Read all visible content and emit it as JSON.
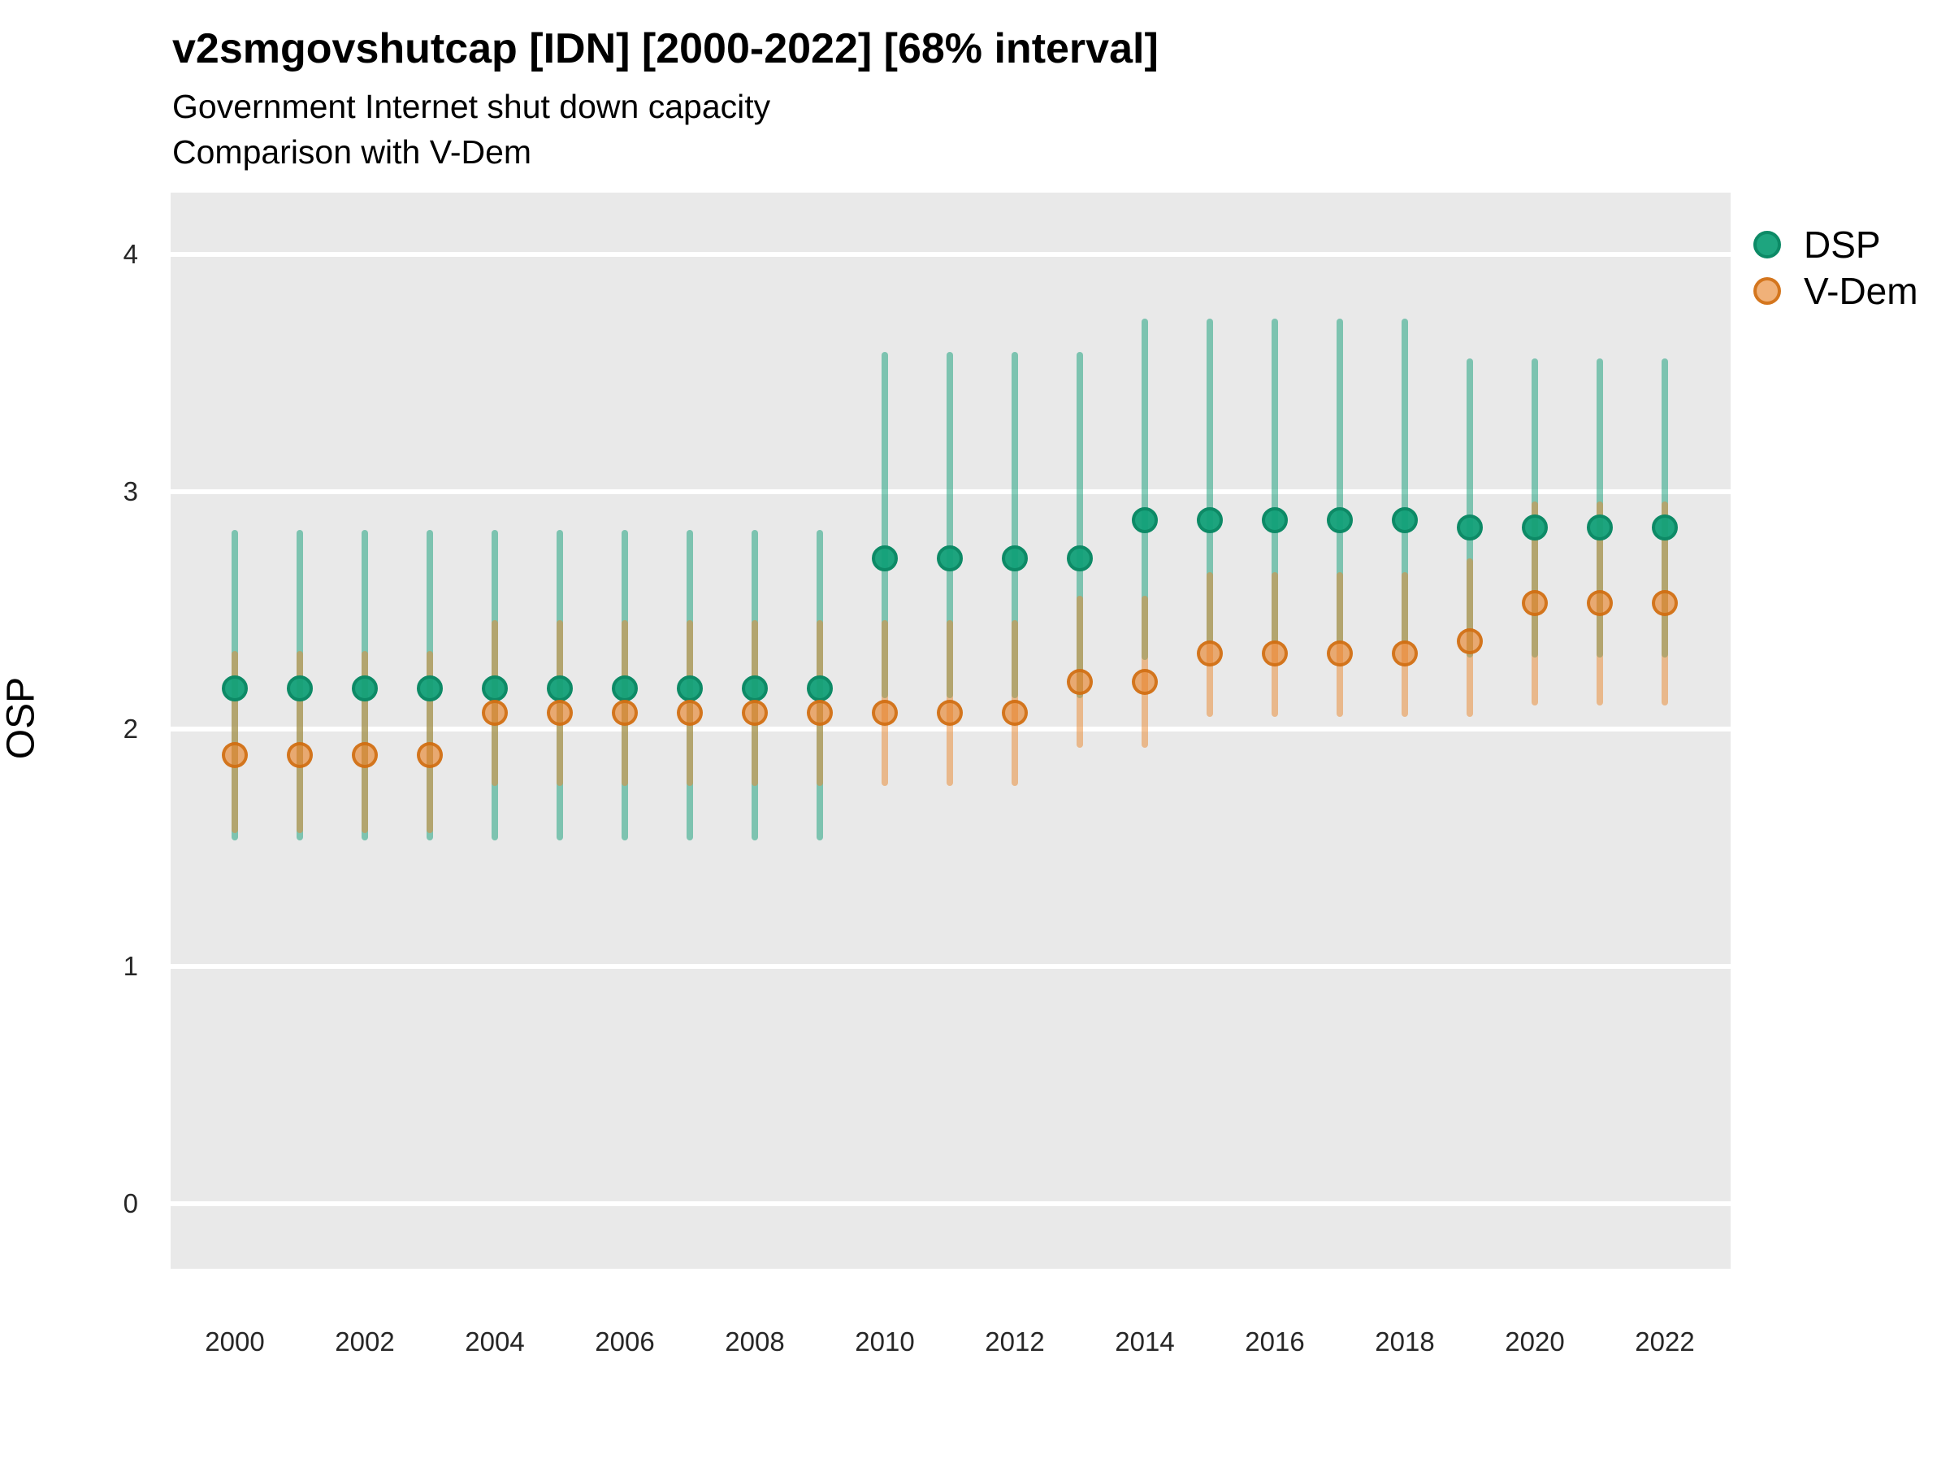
{
  "header": {
    "title": "v2smgovshutcap [IDN] [2000-2022] [68% interval]",
    "subtitle1": "Government Internet shut down capacity",
    "subtitle2": "Comparison with V-Dem"
  },
  "chart_data": {
    "type": "scatter",
    "mark": "point-with-interval",
    "title": "v2smgovshutcap [IDN] [2000-2022] [68% interval]",
    "subtitle": "Government Internet shut down capacity — Comparison with V-Dem",
    "xlabel": "",
    "ylabel": "OSP",
    "ylim": [
      0,
      4
    ],
    "yticks": [
      0,
      1,
      2,
      3,
      4
    ],
    "xticks": [
      2000,
      2002,
      2004,
      2006,
      2008,
      2010,
      2012,
      2014,
      2016,
      2018,
      2020,
      2022
    ],
    "grid": "major-horizontal-white-on-grey",
    "legend_position": "top-right",
    "interval_note": "68% interval",
    "years": [
      2000,
      2001,
      2002,
      2003,
      2004,
      2005,
      2006,
      2007,
      2008,
      2009,
      2010,
      2011,
      2012,
      2013,
      2014,
      2015,
      2016,
      2017,
      2018,
      2019,
      2020,
      2021,
      2022
    ],
    "series": [
      {
        "name": "DSP",
        "point_color": "rgba(18,160,120,0.95)",
        "point_border": "#0d8a66",
        "bar_color": "rgba(18,158,120,0.5)",
        "values": [
          2.17,
          2.17,
          2.17,
          2.17,
          2.17,
          2.17,
          2.17,
          2.17,
          2.17,
          2.17,
          2.72,
          2.72,
          2.72,
          2.72,
          2.88,
          2.88,
          2.88,
          2.88,
          2.88,
          2.85,
          2.85,
          2.85,
          2.85
        ],
        "lo": [
          1.53,
          1.53,
          1.53,
          1.53,
          1.53,
          1.53,
          1.53,
          1.53,
          1.53,
          1.53,
          2.13,
          2.13,
          2.13,
          2.13,
          2.29,
          2.36,
          2.36,
          2.36,
          2.36,
          2.3,
          2.3,
          2.3,
          2.3
        ],
        "hi": [
          2.84,
          2.84,
          2.84,
          2.84,
          2.84,
          2.84,
          2.84,
          2.84,
          2.84,
          2.84,
          3.59,
          3.59,
          3.59,
          3.59,
          3.73,
          3.73,
          3.73,
          3.73,
          3.73,
          3.56,
          3.56,
          3.56,
          3.56
        ]
      },
      {
        "name": "V-Dem",
        "point_color": "rgba(231,129,39,0.62)",
        "point_border": "rgba(208,108,15,0.85)",
        "bar_color": "rgba(233,135,45,0.5)",
        "values": [
          1.89,
          1.89,
          1.89,
          1.89,
          2.07,
          2.07,
          2.07,
          2.07,
          2.07,
          2.07,
          2.07,
          2.07,
          2.07,
          2.2,
          2.2,
          2.32,
          2.32,
          2.32,
          2.32,
          2.37,
          2.53,
          2.53,
          2.53
        ],
        "lo": [
          1.56,
          1.56,
          1.56,
          1.56,
          1.76,
          1.76,
          1.76,
          1.76,
          1.76,
          1.76,
          1.76,
          1.76,
          1.76,
          1.92,
          1.92,
          2.05,
          2.05,
          2.05,
          2.05,
          2.05,
          2.1,
          2.1,
          2.1
        ],
        "hi": [
          2.33,
          2.33,
          2.33,
          2.33,
          2.46,
          2.46,
          2.46,
          2.46,
          2.46,
          2.46,
          2.46,
          2.46,
          2.46,
          2.56,
          2.56,
          2.66,
          2.66,
          2.66,
          2.66,
          2.72,
          2.96,
          2.96,
          2.96
        ]
      }
    ],
    "colors": {
      "panel_background": "#e9e9e9",
      "gridline": "#ffffff",
      "dsp_green": "#12a078",
      "vdem_orange": "#e78127",
      "text": "#262626"
    }
  },
  "legend": {
    "items": [
      {
        "label": "DSP"
      },
      {
        "label": "V-Dem"
      }
    ]
  }
}
